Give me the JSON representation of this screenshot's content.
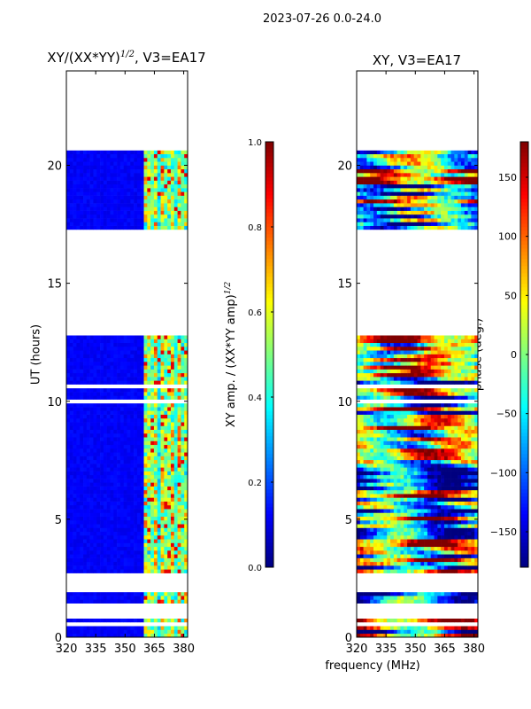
{
  "figure_title": "2023-07-26 0.0-24.0",
  "shared_xlabel": "frequency (MHz)",
  "colors": {
    "background": "#ffffff",
    "blank": "#ffffff",
    "axis": "#000000",
    "jet_stops": [
      "#00007f",
      "#0000ff",
      "#007fff",
      "#00ffff",
      "#7fff7f",
      "#ffff00",
      "#ff7f00",
      "#ff0000",
      "#7f0000"
    ]
  },
  "chart_data": [
    {
      "type": "heatmap",
      "title_main": "XY/(XX*YY)",
      "title_sup": "1/2",
      "title_suffix": ", V3=EA17",
      "xlabel": "",
      "ylabel": "UT (hours)",
      "xlim": [
        320,
        382
      ],
      "ylim": [
        0,
        24
      ],
      "xticks": [
        320,
        335,
        350,
        365,
        380
      ],
      "yticks": [
        0,
        5,
        10,
        15,
        20
      ],
      "colormap": "jet",
      "zlim": [
        0.0,
        1.0
      ],
      "gaps_hours": [
        [
          20.7,
          24.0
        ],
        [
          17.55,
          17.65
        ],
        [
          12.8,
          17.35
        ],
        [
          10.55,
          10.75
        ],
        [
          10.0,
          10.15
        ],
        [
          2.15,
          2.8
        ],
        [
          1.95,
          2.05
        ],
        [
          0.85,
          1.45
        ],
        [
          0.45,
          0.6
        ]
      ],
      "bright_channel_range_mhz": [
        359,
        382
      ],
      "colorbar": {
        "label": "XY amp. / (XX*YY amp)",
        "label_sup": "1/2",
        "ticks": [
          0.0,
          0.2,
          0.4,
          0.6,
          0.8,
          1.0
        ],
        "ticklabels": [
          "0.0",
          "0.2",
          "0.4",
          "0.6",
          "0.8",
          "1.0"
        ]
      }
    },
    {
      "type": "heatmap",
      "title": "XY, V3=EA17",
      "xlabel": "",
      "ylabel": "",
      "xlim": [
        320,
        382
      ],
      "ylim": [
        0,
        24
      ],
      "xticks": [
        320,
        335,
        350,
        365,
        380
      ],
      "yticks": [
        0,
        5,
        10,
        15,
        20
      ],
      "colormap": "jet",
      "zlim": [
        -180,
        180
      ],
      "gaps_hours": [
        [
          20.7,
          24.0
        ],
        [
          17.55,
          17.65
        ],
        [
          12.8,
          17.35
        ],
        [
          10.55,
          10.75
        ],
        [
          10.0,
          10.15
        ],
        [
          2.15,
          2.8
        ],
        [
          1.95,
          2.05
        ],
        [
          0.85,
          1.45
        ],
        [
          0.45,
          0.6
        ]
      ],
      "colorbar": {
        "label": "phase (deg.)",
        "ticks": [
          -150,
          -100,
          -50,
          0,
          50,
          100,
          150
        ],
        "ticklabels": [
          "−150",
          "−100",
          "−50",
          "0",
          "50",
          "100",
          "150"
        ]
      }
    }
  ]
}
